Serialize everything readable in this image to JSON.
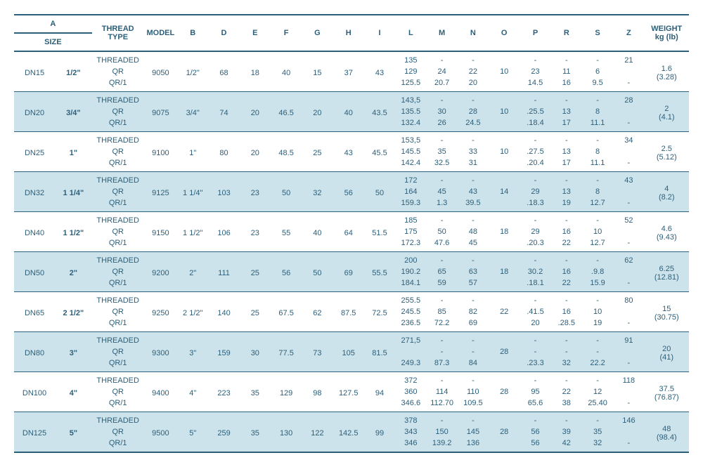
{
  "headers": {
    "groupA": "A",
    "size": "SIZE",
    "threadType": "THREAD\nTYPE",
    "model": "MODEL",
    "cols": [
      "B",
      "D",
      "E",
      "F",
      "G",
      "H",
      "I",
      "L",
      "M",
      "N",
      "O",
      "P",
      "R",
      "S",
      "Z"
    ],
    "weight": "WEIGHT\nkg (lb)"
  },
  "rows": [
    {
      "shade": false,
      "dn": "DN15",
      "size": "1/2\"",
      "model": "9050",
      "b": "1/2\"",
      "common": {
        "D": "68",
        "E": "18",
        "F": "40",
        "G": "15",
        "H": "37",
        "I": "43"
      },
      "threads": [
        {
          "tt": "THREADED",
          "L": "135",
          "M": "-",
          "N": "-",
          "O": "",
          "P": "-",
          "R": "-",
          "S": "-",
          "Z": "21"
        },
        {
          "tt": "QR",
          "L": "129",
          "M": "24",
          "N": "22",
          "O": "10",
          "P": "23",
          "R": "11",
          "S": "6",
          "Z": ""
        },
        {
          "tt": "QR/1",
          "L": "125.5",
          "M": "20.7",
          "N": "20",
          "O": "",
          "P": "14.5",
          "R": "16",
          "S": "9.5",
          "Z": "-"
        }
      ],
      "weight": [
        "1.6",
        "(3.28)"
      ]
    },
    {
      "shade": true,
      "dn": "DN20",
      "size": "3/4\"",
      "model": "9075",
      "b": "3/4\"",
      "common": {
        "D": "74",
        "E": "20",
        "F": "46.5",
        "G": "20",
        "H": "40",
        "I": "43.5"
      },
      "threads": [
        {
          "tt": "THREADED",
          "L": "143,5",
          "M": "-",
          "N": "-",
          "O": "",
          "P": "-",
          "R": "-",
          "S": "-",
          "Z": "28"
        },
        {
          "tt": "QR",
          "L": "135.5",
          "M": "30",
          "N": "28",
          "O": "10",
          "P": ".25.5",
          "R": "13",
          "S": "8",
          "Z": ""
        },
        {
          "tt": "QR/1",
          "L": "132.4",
          "M": "26",
          "N": "24.5",
          "O": "",
          "P": ".18.4",
          "R": "17",
          "S": "11.1",
          "Z": "-"
        }
      ],
      "weight": [
        "2",
        "(4.1)"
      ]
    },
    {
      "shade": false,
      "dn": "DN25",
      "size": "1\"",
      "model": "9100",
      "b": "1\"",
      "common": {
        "D": "80",
        "E": "20",
        "F": "48.5",
        "G": "25",
        "H": "43",
        "I": "45.5"
      },
      "threads": [
        {
          "tt": "THREADED",
          "L": "153,5",
          "M": "-",
          "N": "-",
          "O": "",
          "P": "-",
          "R": "-",
          "S": "-",
          "Z": "34"
        },
        {
          "tt": "QR",
          "L": "145.5",
          "M": "35",
          "N": "33",
          "O": "10",
          "P": ".27.5",
          "R": "13",
          "S": "8",
          "Z": ""
        },
        {
          "tt": "QR/1",
          "L": "142.4",
          "M": "32.5",
          "N": "31",
          "O": "",
          "P": ".20.4",
          "R": "17",
          "S": "11.1",
          "Z": "-"
        }
      ],
      "weight": [
        "2.5",
        "(5.12)"
      ]
    },
    {
      "shade": true,
      "dn": "DN32",
      "size": "1 1/4\"",
      "model": "9125",
      "b": "1 1/4\"",
      "common": {
        "D": "103",
        "E": "23",
        "F": "50",
        "G": "32",
        "H": "56",
        "I": "50"
      },
      "threads": [
        {
          "tt": "THREADED",
          "L": "172",
          "M": "-",
          "N": "-",
          "O": "",
          "P": "-",
          "R": "-",
          "S": "-",
          "Z": "43"
        },
        {
          "tt": "QR",
          "L": "164",
          "M": "45",
          "N": "43",
          "O": "14",
          "P": "29",
          "R": "13",
          "S": "8",
          "Z": ""
        },
        {
          "tt": "QR/1",
          "L": "159.3",
          "M": "1.3",
          "N": "39.5",
          "O": "",
          "P": ".18.3",
          "R": "19",
          "S": "12.7",
          "Z": "-"
        }
      ],
      "weight": [
        "4",
        "(8.2)"
      ]
    },
    {
      "shade": false,
      "dn": "DN40",
      "size": "1 1/2\"",
      "model": "9150",
      "b": "1 1/2\"",
      "common": {
        "D": "106",
        "E": "23",
        "F": "55",
        "G": "40",
        "H": "64",
        "I": "51.5"
      },
      "threads": [
        {
          "tt": "THREADED",
          "L": "185",
          "M": "-",
          "N": "-",
          "O": "",
          "P": "-",
          "R": "-",
          "S": "-",
          "Z": "52"
        },
        {
          "tt": "QR",
          "L": "175",
          "M": "50",
          "N": "48",
          "O": "18",
          "P": "29",
          "R": "16",
          "S": "10",
          "Z": ""
        },
        {
          "tt": "QR/1",
          "L": "172.3",
          "M": "47.6",
          "N": "45",
          "O": "",
          "P": ".20.3",
          "R": "22",
          "S": "12.7",
          "Z": "-"
        }
      ],
      "weight": [
        "4.6",
        "(9.43)"
      ]
    },
    {
      "shade": true,
      "dn": "DN50",
      "size": "2\"",
      "model": "9200",
      "b": "2\"",
      "common": {
        "D": "111",
        "E": "25",
        "F": "56",
        "G": "50",
        "H": "69",
        "I": "55.5"
      },
      "threads": [
        {
          "tt": "THREADED",
          "L": "200",
          "M": "-",
          "N": "-",
          "O": "",
          "P": "-",
          "R": "-",
          "S": "-",
          "Z": "62"
        },
        {
          "tt": "QR",
          "L": "190.2",
          "M": "65",
          "N": "63",
          "O": "18",
          "P": "30.2",
          "R": "16",
          "S": ".9.8",
          "Z": ""
        },
        {
          "tt": "QR/1",
          "L": "184.1",
          "M": "59",
          "N": "57",
          "O": "",
          "P": ".18.1",
          "R": "22",
          "S": "15.9",
          "Z": "-"
        }
      ],
      "weight": [
        "6.25",
        "(12.81)"
      ]
    },
    {
      "shade": false,
      "dn": "DN65",
      "size": "2 1/2\"",
      "model": "9250",
      "b": "2 1/2\"",
      "common": {
        "D": "140",
        "E": "25",
        "F": "67.5",
        "G": "62",
        "H": "87.5",
        "I": "72.5"
      },
      "threads": [
        {
          "tt": "THREADED",
          "L": "255.5",
          "M": "-",
          "N": "-",
          "O": "",
          "P": "-",
          "R": "-",
          "S": "-",
          "Z": "80"
        },
        {
          "tt": "QR",
          "L": "245.5",
          "M": "85",
          "N": "82",
          "O": "22",
          "P": ".41.5",
          "R": "16",
          "S": "10",
          "Z": ""
        },
        {
          "tt": "QR/1",
          "L": "236.5",
          "M": "72.2",
          "N": "69",
          "O": "",
          "P": "20",
          "R": ".28.5",
          "S": "19",
          "Z": "-"
        }
      ],
      "weight": [
        "15",
        "(30.75)"
      ]
    },
    {
      "shade": true,
      "dn": "DN80",
      "size": "3\"",
      "model": "9300",
      "b": "3\"",
      "common": {
        "D": "159",
        "E": "30",
        "F": "77.5",
        "G": "73",
        "H": "105",
        "I": "81.5"
      },
      "threads": [
        {
          "tt": "THREADED",
          "L": "271,5",
          "M": "-",
          "N": "-",
          "O": "",
          "P": "-",
          "R": "-",
          "S": "-",
          "Z": "91"
        },
        {
          "tt": "QR",
          "L": "",
          "M": "-",
          "N": "-",
          "O": "28",
          "P": "-",
          "R": "-",
          "S": "-",
          "Z": ""
        },
        {
          "tt": "QR/1",
          "L": "249.3",
          "M": "87.3",
          "N": "84",
          "O": "",
          "P": ".23.3",
          "R": "32",
          "S": "22.2",
          "Z": "-"
        }
      ],
      "weight": [
        "20",
        "(41)"
      ]
    },
    {
      "shade": false,
      "dn": "DN100",
      "size": "4\"",
      "model": "9400",
      "b": "4\"",
      "common": {
        "D": "223",
        "E": "35",
        "F": "129",
        "G": "98",
        "H": "127.5",
        "I": "94"
      },
      "threads": [
        {
          "tt": "THREADED",
          "L": "372",
          "M": "-",
          "N": "-",
          "O": "",
          "P": "-",
          "R": "-",
          "S": "-",
          "Z": "118"
        },
        {
          "tt": "QR",
          "L": "360",
          "M": "114",
          "N": "110",
          "O": "28",
          "P": "95",
          "R": "22",
          "S": "12",
          "Z": ""
        },
        {
          "tt": "QR/1",
          "L": "346.6",
          "M": "112.70",
          "N": "109.5",
          "O": "",
          "P": "65.6",
          "R": "38",
          "S": "25.40",
          "Z": "-"
        }
      ],
      "weight": [
        "37.5",
        "(76.87)"
      ]
    },
    {
      "shade": true,
      "dn": "DN125",
      "size": "5\"",
      "model": "9500",
      "b": "5\"",
      "common": {
        "D": "259",
        "E": "35",
        "F": "130",
        "G": "122",
        "H": "142.5",
        "I": "99"
      },
      "threads": [
        {
          "tt": "THREADED",
          "L": "378",
          "M": "-",
          "N": "-",
          "O": "",
          "P": "-",
          "R": "-",
          "S": "-",
          "Z": "146"
        },
        {
          "tt": "QR",
          "L": "343",
          "M": "150",
          "N": "145",
          "O": "28",
          "P": "56",
          "R": "39",
          "S": "35",
          "Z": ""
        },
        {
          "tt": "QR/1",
          "L": "346",
          "M": "139.2",
          "N": "136",
          "O": "",
          "P": "56",
          "R": "42",
          "S": "32",
          "Z": "-"
        }
      ],
      "weight": [
        "48",
        "(98.4)"
      ]
    }
  ]
}
